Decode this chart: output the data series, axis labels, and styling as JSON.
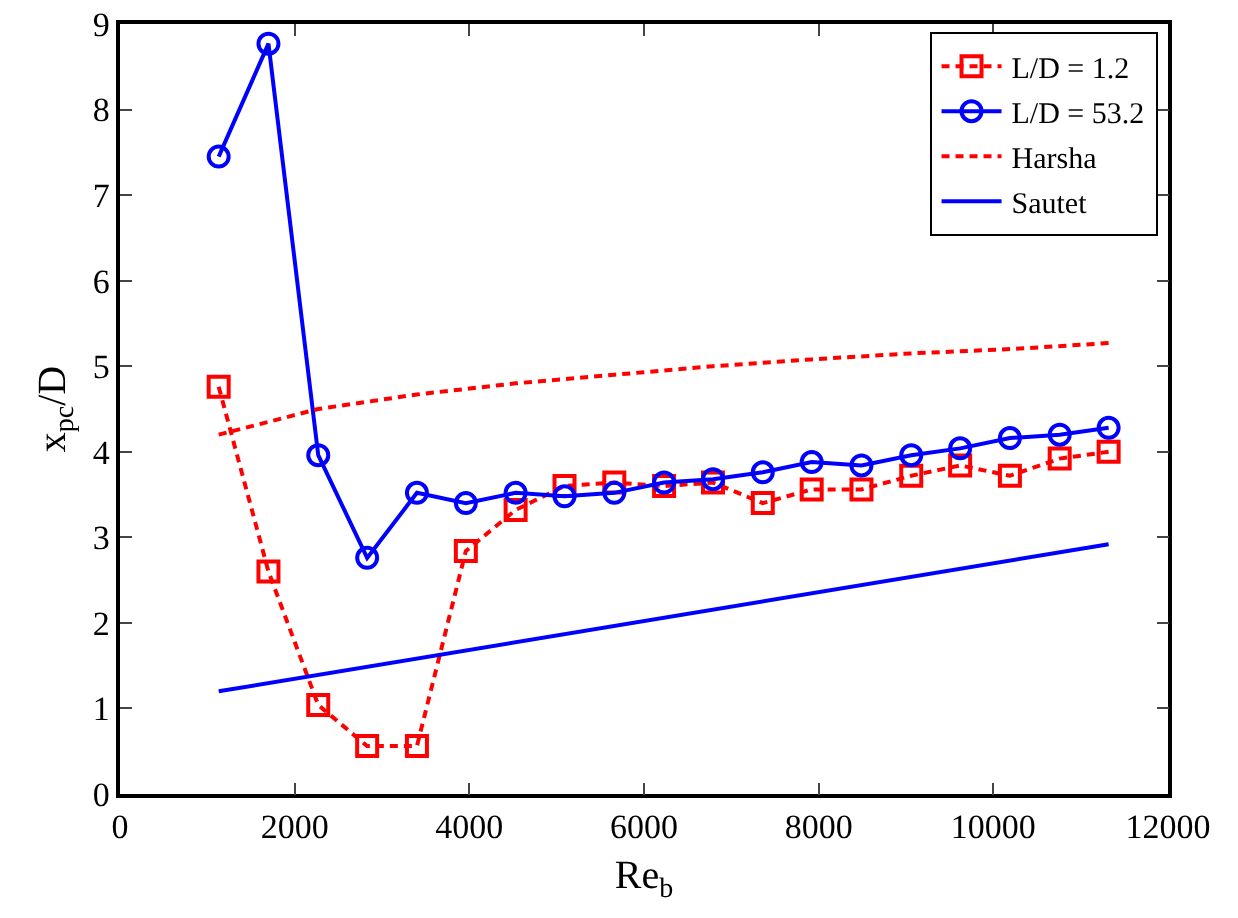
{
  "chart_data": {
    "type": "line",
    "xlabel": "Re$_{b}$",
    "ylabel": "x$_{pc}$/D",
    "xlim": [
      0,
      12000
    ],
    "xticks": [
      0,
      2000,
      4000,
      6000,
      8000,
      10000,
      12000
    ],
    "ylim": [
      0,
      9
    ],
    "yticks": [
      0,
      1,
      2,
      3,
      4,
      5,
      6,
      7,
      8,
      9
    ],
    "grid": false,
    "legend": "top right",
    "series": [
      {
        "name": "L/D = 1.2",
        "color": "#ff0000",
        "line_style": "dashed",
        "marker": "square",
        "x": [
          1130,
          1700,
          2270,
          2830,
          3400,
          3960,
          4530,
          5090,
          5660,
          6230,
          6790,
          7360,
          7920,
          8490,
          9060,
          9620,
          10190,
          10760,
          11320
        ],
        "values": [
          4.76,
          2.6,
          1.04,
          0.56,
          0.56,
          2.84,
          3.32,
          3.6,
          3.64,
          3.6,
          3.64,
          3.4,
          3.56,
          3.56,
          3.72,
          3.84,
          3.72,
          3.92,
          4.0
        ]
      },
      {
        "name": "L/D = 53.2",
        "color": "#0000ff",
        "line_style": "solid",
        "marker": "circle",
        "x": [
          1130,
          1700,
          2270,
          2830,
          3400,
          3960,
          4530,
          5090,
          5660,
          6230,
          6790,
          7360,
          7920,
          8490,
          9060,
          9620,
          10190,
          10760,
          11320
        ],
        "values": [
          7.45,
          8.77,
          3.96,
          2.76,
          3.52,
          3.4,
          3.52,
          3.48,
          3.52,
          3.64,
          3.68,
          3.76,
          3.88,
          3.84,
          3.96,
          4.04,
          4.16,
          4.2,
          4.28
        ]
      },
      {
        "name": "Harsha",
        "color": "#ff0000",
        "line_style": "dashed",
        "marker": "none",
        "x": [
          1130,
          2270,
          3400,
          4530,
          5660,
          6790,
          7920,
          9060,
          10190,
          11320
        ],
        "values": [
          4.2,
          4.5,
          4.67,
          4.8,
          4.9,
          5.0,
          5.08,
          5.15,
          5.2,
          5.27
        ]
      },
      {
        "name": "Sautet",
        "color": "#0000ff",
        "line_style": "solid",
        "marker": "none",
        "x": [
          1130,
          11320
        ],
        "values": [
          1.2,
          2.92
        ]
      }
    ]
  }
}
